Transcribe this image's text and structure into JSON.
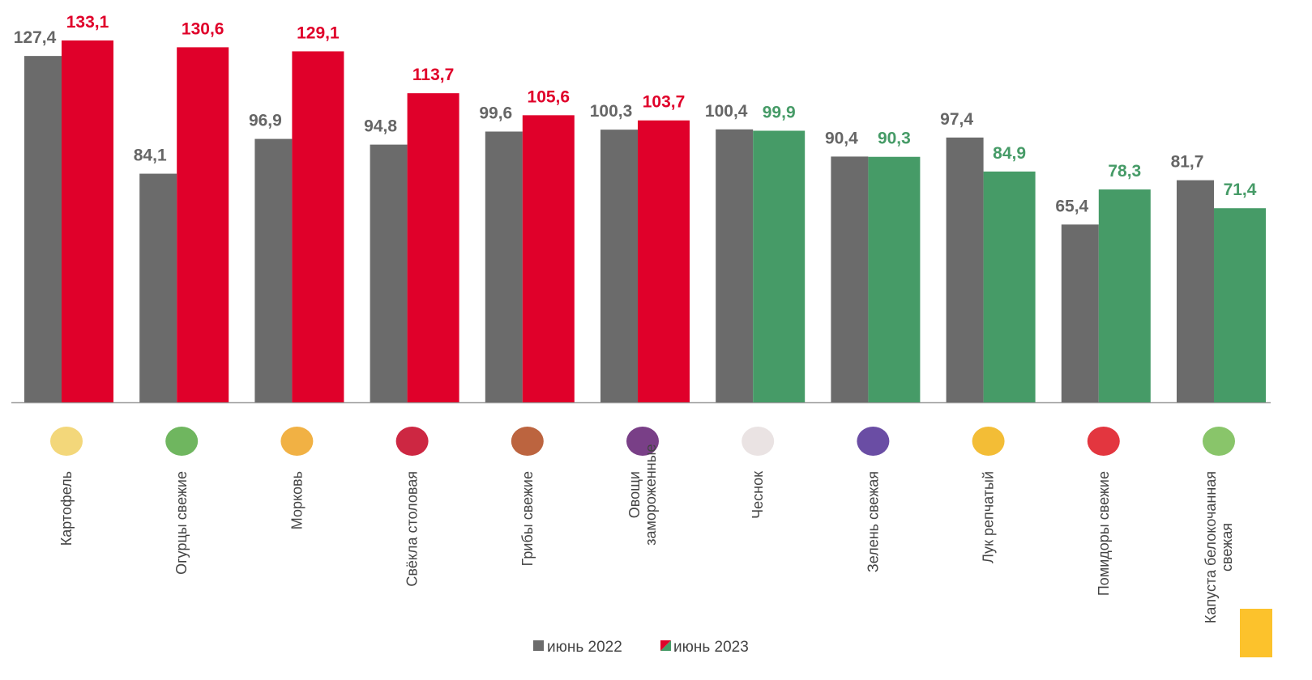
{
  "chart_data": {
    "type": "bar",
    "categories": [
      "Картофель",
      "Огурцы свежие",
      "Морковь",
      "Свёкла столовая",
      "Грибы свежие",
      "Овощи\nзамороженные",
      "Чеснок",
      "Зелень свежая",
      "Лук репчатый",
      "Помидоры свежие",
      "Капуста белокочанная\nсвежая"
    ],
    "series": [
      {
        "name": "июнь 2022",
        "color": "#6b6b6b",
        "values": [
          127.4,
          84.1,
          96.9,
          94.8,
          99.6,
          100.3,
          100.4,
          90.4,
          97.4,
          65.4,
          81.7
        ],
        "value_labels": [
          "127,4",
          "84,1",
          "96,9",
          "94,8",
          "99,6",
          "100,3",
          "100,4",
          "90,4",
          "97,4",
          "65,4",
          "81,7"
        ]
      },
      {
        "name": "июнь 2023",
        "colors": [
          "#e0002a",
          "#e0002a",
          "#e0002a",
          "#e0002a",
          "#e0002a",
          "#e0002a",
          "#469b67",
          "#469b67",
          "#469b67",
          "#469b67",
          "#469b67"
        ],
        "values": [
          133.1,
          130.6,
          129.1,
          113.7,
          105.6,
          103.7,
          99.9,
          90.3,
          84.9,
          78.3,
          71.4
        ],
        "value_labels": [
          "133,1",
          "130,6",
          "129,1",
          "113,7",
          "105,6",
          "103,7",
          "99,9",
          "90,3",
          "84,9",
          "78,3",
          "71,4"
        ]
      }
    ],
    "ylim": [
      0,
      148
    ],
    "grid": false
  }
}
